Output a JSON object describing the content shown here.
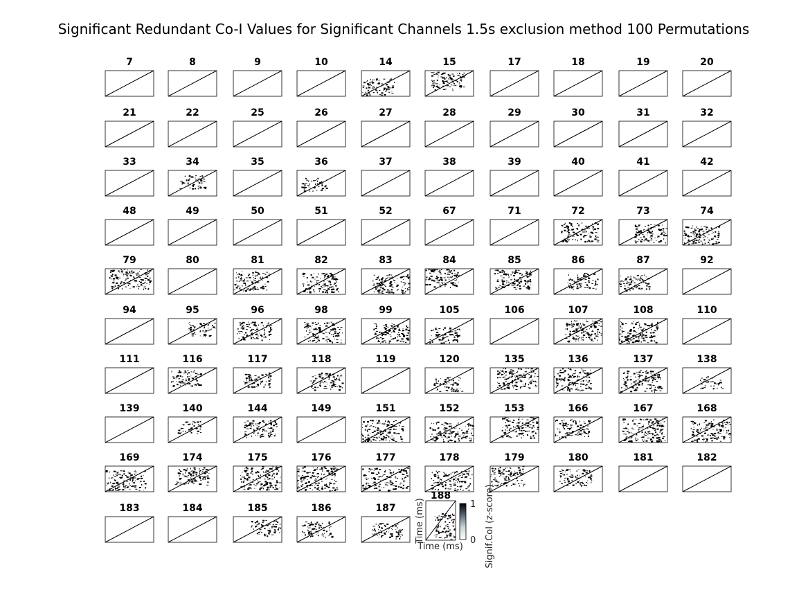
{
  "chart_data": {
    "type": "heatmap",
    "title": "Significant Redundant Co-I Values for Significant Channels 1.5s exclusion method 100 Permutations",
    "panels": [
      {
        "channel": "7",
        "density": 0
      },
      {
        "channel": "8",
        "density": 0
      },
      {
        "channel": "9",
        "density": 0
      },
      {
        "channel": "10",
        "density": 0
      },
      {
        "channel": "14",
        "density": 0.35
      },
      {
        "channel": "15",
        "density": 0.4
      },
      {
        "channel": "17",
        "density": 0
      },
      {
        "channel": "18",
        "density": 0
      },
      {
        "channel": "19",
        "density": 0
      },
      {
        "channel": "20",
        "density": 0
      },
      {
        "channel": "21",
        "density": 0
      },
      {
        "channel": "22",
        "density": 0
      },
      {
        "channel": "25",
        "density": 0
      },
      {
        "channel": "26",
        "density": 0
      },
      {
        "channel": "27",
        "density": 0
      },
      {
        "channel": "28",
        "density": 0
      },
      {
        "channel": "29",
        "density": 0
      },
      {
        "channel": "30",
        "density": 0
      },
      {
        "channel": "31",
        "density": 0
      },
      {
        "channel": "32",
        "density": 0
      },
      {
        "channel": "33",
        "density": 0
      },
      {
        "channel": "34",
        "density": 0.2
      },
      {
        "channel": "35",
        "density": 0
      },
      {
        "channel": "36",
        "density": 0.2
      },
      {
        "channel": "37",
        "density": 0
      },
      {
        "channel": "38",
        "density": 0
      },
      {
        "channel": "39",
        "density": 0
      },
      {
        "channel": "40",
        "density": 0
      },
      {
        "channel": "41",
        "density": 0
      },
      {
        "channel": "42",
        "density": 0
      },
      {
        "channel": "48",
        "density": 0
      },
      {
        "channel": "49",
        "density": 0
      },
      {
        "channel": "50",
        "density": 0
      },
      {
        "channel": "51",
        "density": 0
      },
      {
        "channel": "52",
        "density": 0
      },
      {
        "channel": "67",
        "density": 0
      },
      {
        "channel": "71",
        "density": 0
      },
      {
        "channel": "72",
        "density": 0.45
      },
      {
        "channel": "73",
        "density": 0.4
      },
      {
        "channel": "74",
        "density": 0.45
      },
      {
        "channel": "79",
        "density": 0.55
      },
      {
        "channel": "80",
        "density": 0
      },
      {
        "channel": "81",
        "density": 0.45
      },
      {
        "channel": "82",
        "density": 0.45
      },
      {
        "channel": "83",
        "density": 0.45
      },
      {
        "channel": "84",
        "density": 0.4
      },
      {
        "channel": "85",
        "density": 0.45
      },
      {
        "channel": "86",
        "density": 0.3
      },
      {
        "channel": "87",
        "density": 0.3
      },
      {
        "channel": "92",
        "density": 0
      },
      {
        "channel": "94",
        "density": 0
      },
      {
        "channel": "95",
        "density": 0.25
      },
      {
        "channel": "96",
        "density": 0.4
      },
      {
        "channel": "98",
        "density": 0.5
      },
      {
        "channel": "99",
        "density": 0.55
      },
      {
        "channel": "105",
        "density": 0.3
      },
      {
        "channel": "106",
        "density": 0
      },
      {
        "channel": "107",
        "density": 0.55
      },
      {
        "channel": "108",
        "density": 0.55
      },
      {
        "channel": "110",
        "density": 0
      },
      {
        "channel": "111",
        "density": 0
      },
      {
        "channel": "116",
        "density": 0.3
      },
      {
        "channel": "117",
        "density": 0.25
      },
      {
        "channel": "118",
        "density": 0.35
      },
      {
        "channel": "119",
        "density": 0
      },
      {
        "channel": "120",
        "density": 0.25
      },
      {
        "channel": "135",
        "density": 0.6
      },
      {
        "channel": "136",
        "density": 0.6
      },
      {
        "channel": "137",
        "density": 0.55
      },
      {
        "channel": "138",
        "density": 0.15
      },
      {
        "channel": "139",
        "density": 0
      },
      {
        "channel": "140",
        "density": 0.15
      },
      {
        "channel": "144",
        "density": 0.35
      },
      {
        "channel": "149",
        "density": 0
      },
      {
        "channel": "151",
        "density": 0.65
      },
      {
        "channel": "152",
        "density": 0.6
      },
      {
        "channel": "153",
        "density": 0.55
      },
      {
        "channel": "166",
        "density": 0.4
      },
      {
        "channel": "167",
        "density": 0.6
      },
      {
        "channel": "168",
        "density": 0.65
      },
      {
        "channel": "169",
        "density": 0.65
      },
      {
        "channel": "174",
        "density": 0.4
      },
      {
        "channel": "175",
        "density": 0.65
      },
      {
        "channel": "176",
        "density": 0.7
      },
      {
        "channel": "177",
        "density": 0.7
      },
      {
        "channel": "178",
        "density": 0.65
      },
      {
        "channel": "179",
        "density": 0.45
      },
      {
        "channel": "180",
        "density": 0.35
      },
      {
        "channel": "181",
        "density": 0
      },
      {
        "channel": "182",
        "density": 0
      },
      {
        "channel": "183",
        "density": 0
      },
      {
        "channel": "184",
        "density": 0
      },
      {
        "channel": "185",
        "density": 0.3
      },
      {
        "channel": "186",
        "density": 0.3
      },
      {
        "channel": "187",
        "density": 0.3
      },
      {
        "channel": "188",
        "density": 0.35
      }
    ],
    "last_panel": {
      "xlabel": "Time (ms)",
      "ylabel": "Time (ms)"
    },
    "colorbar": {
      "label": "Signif.CoI (z-score)",
      "range": [
        0,
        1
      ],
      "ticks": [
        "0",
        "1"
      ],
      "colormap": "bone_r",
      "colors": [
        "#ffffff",
        "#000000"
      ]
    },
    "grid": false
  }
}
